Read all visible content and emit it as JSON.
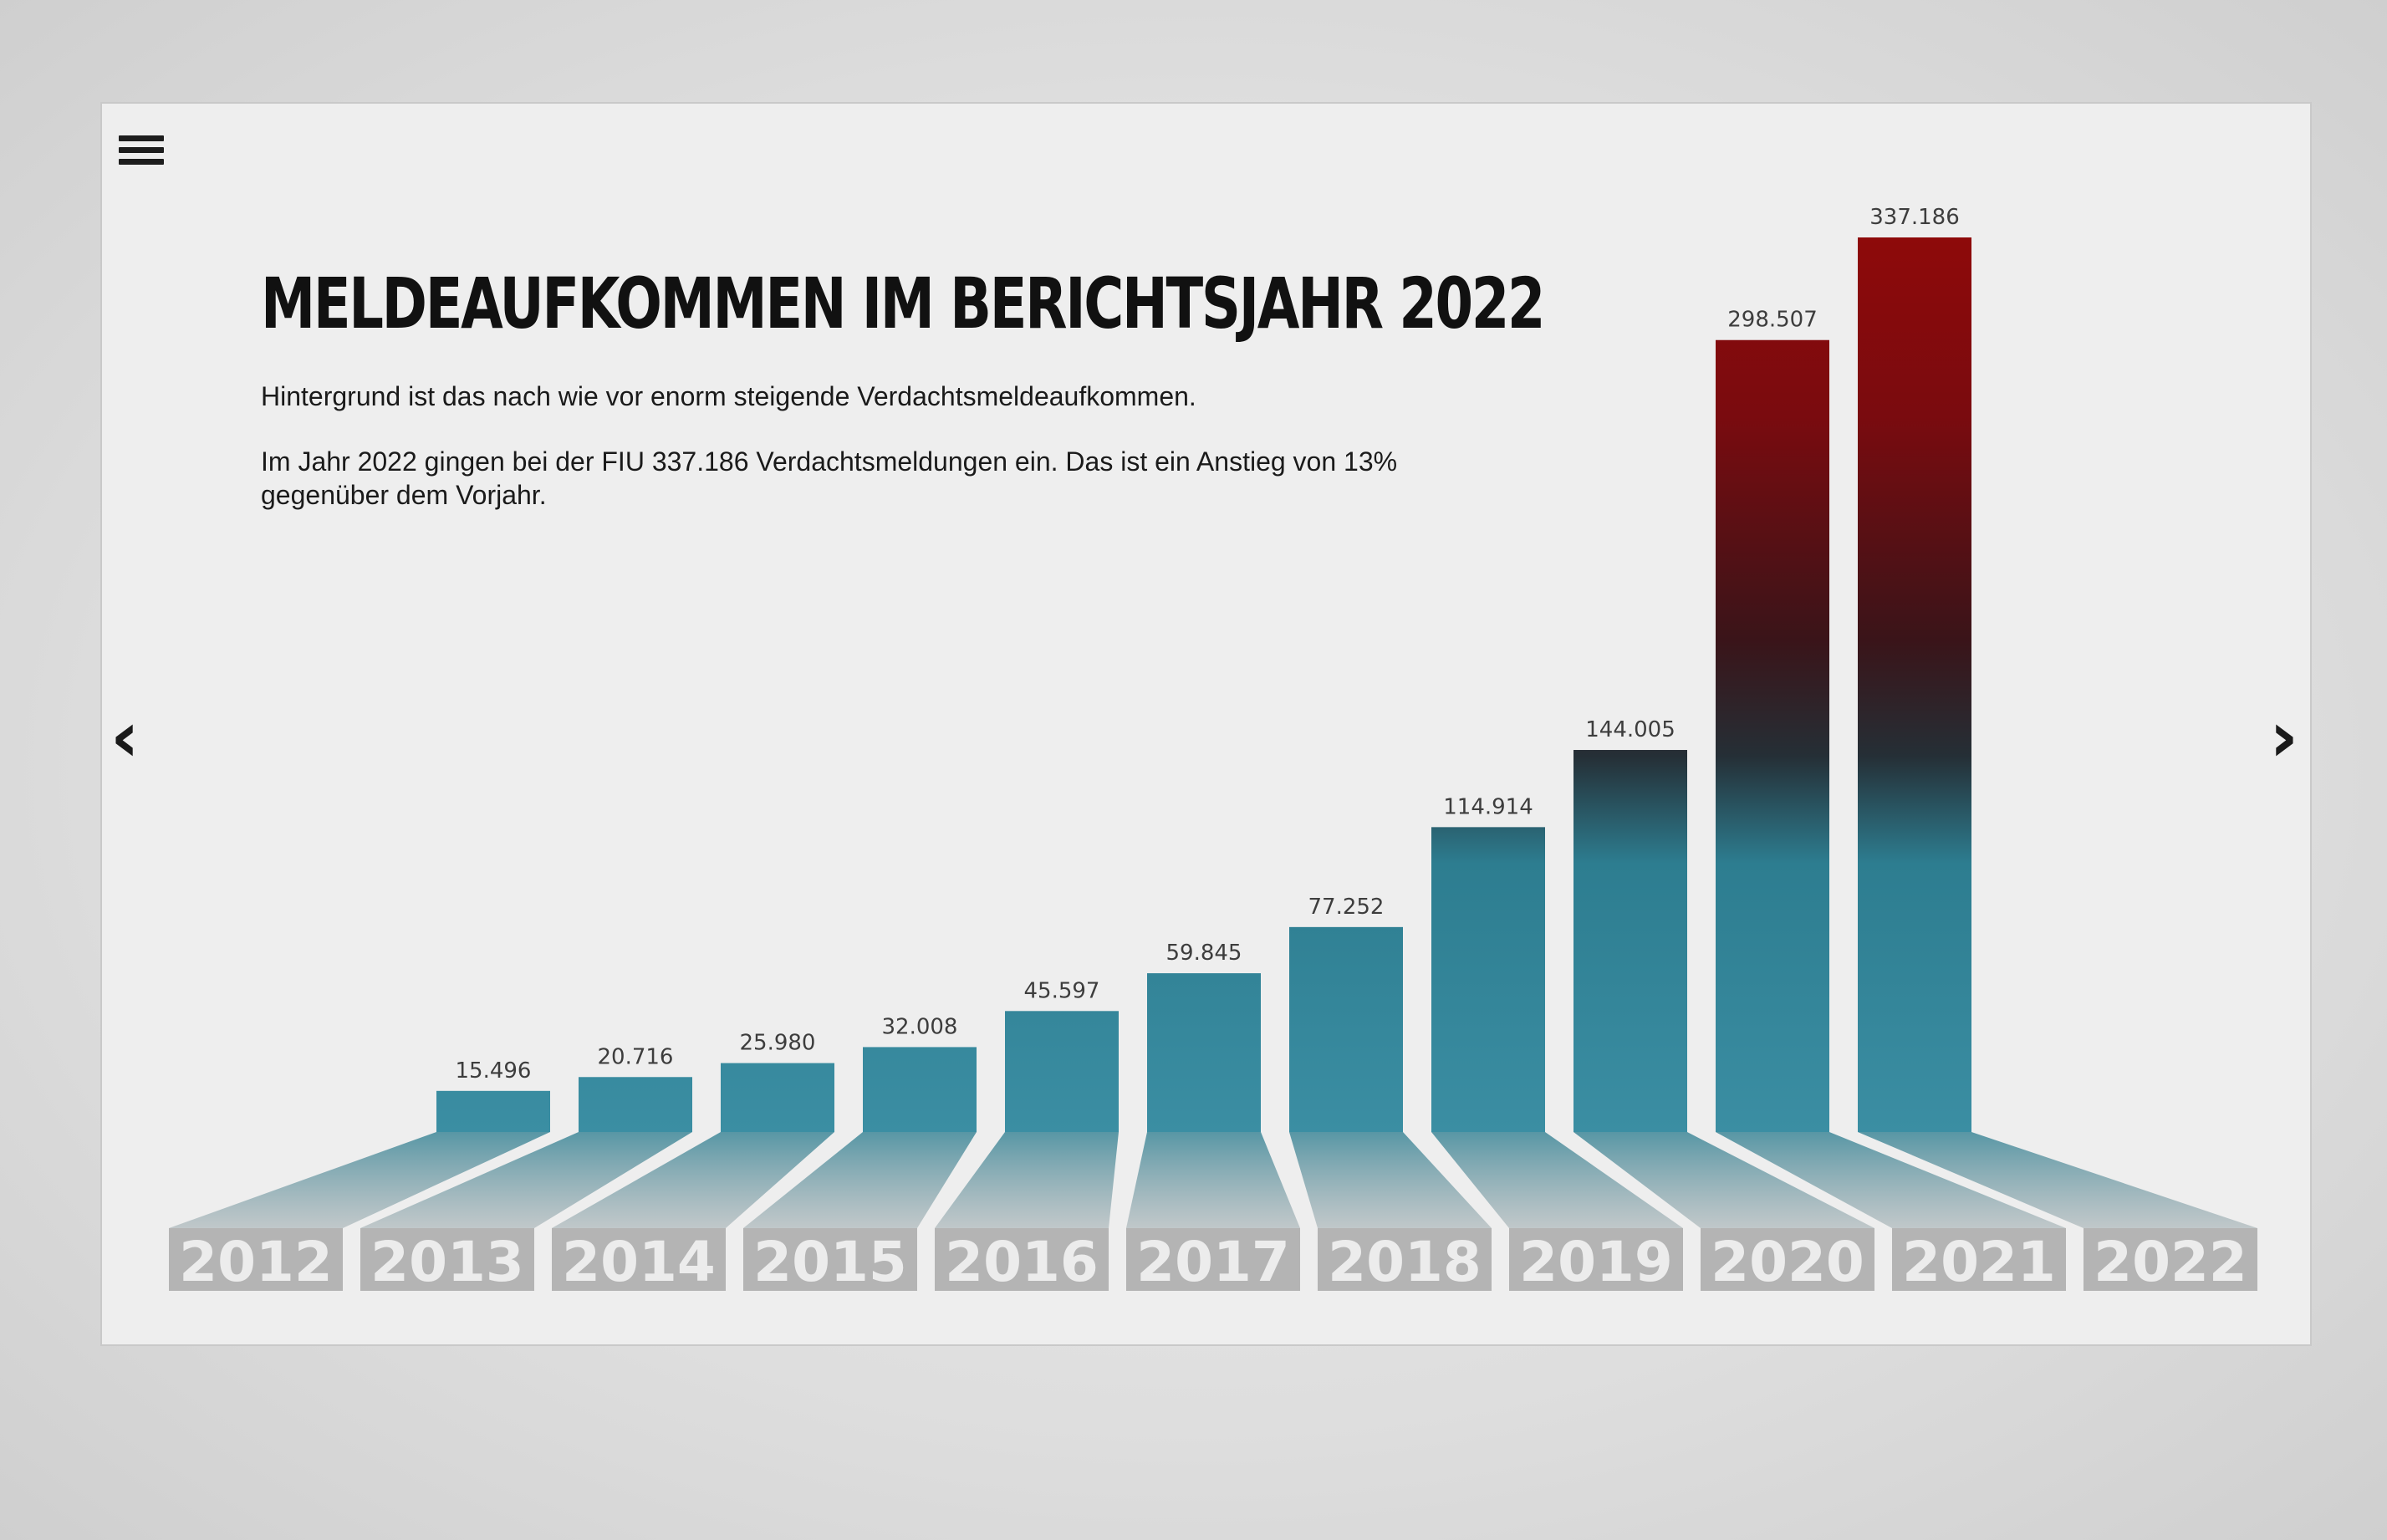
{
  "title": "Meldeaufkommen im Berichtsjahr 2022",
  "subtitle": "Hintergrund ist das nach wie vor enorm steigende Verdachtsmeldeaufkommen.",
  "description": "Im Jahr 2022 gingen bei der FIU 337.186 Verdachtsmeldungen ein. Das ist ein Anstieg von 13% gegenüber dem Vorjahr.",
  "nav": {
    "prev": "‹",
    "next": "›",
    "menu_icon": "hamburger-menu-icon"
  },
  "colors": {
    "low": "#3a8fa3",
    "mid": "#2a2a2e",
    "high": "#8a0a0a",
    "year_plate": "#b4b4b4"
  },
  "chart_data": {
    "type": "bar",
    "categories": [
      "2012",
      "2013",
      "2014",
      "2015",
      "2016",
      "2017",
      "2018",
      "2019",
      "2020",
      "2021",
      "2022"
    ],
    "values": [
      15496,
      20716,
      25980,
      32008,
      45597,
      59845,
      77252,
      114914,
      144005,
      298507,
      337186
    ],
    "value_labels": [
      "15.496",
      "20.716",
      "25.980",
      "32.008",
      "45.597",
      "59.845",
      "77.252",
      "114.914",
      "144.005",
      "298.507",
      "337.186"
    ],
    "title": "Meldeaufkommen im Berichtsjahr 2022",
    "xlabel": "",
    "ylabel": "",
    "grid": false,
    "legend": "none"
  }
}
